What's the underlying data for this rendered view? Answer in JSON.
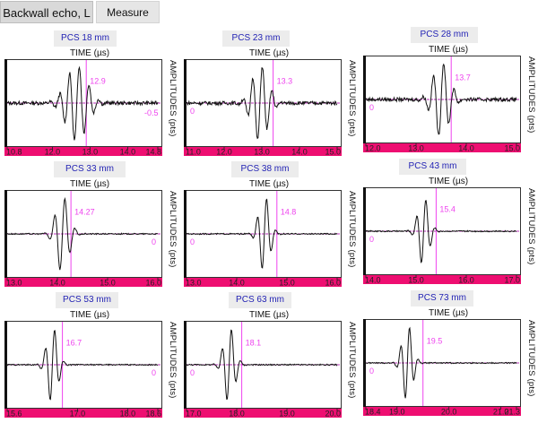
{
  "tabs": [
    {
      "label": "Backwall echo, L"
    },
    {
      "label": "Measure"
    }
  ],
  "axis": {
    "time": "TIME (µs)",
    "amp": "AMPLITUDES (pts)"
  },
  "colors": {
    "strip": "#ee0e71",
    "cursor": "#ee44ee",
    "trace": "#111111",
    "baseline": "#b830b8"
  },
  "panels": [
    {
      "pcs": "PCS 18 mm",
      "cursor": "12.9",
      "zero": "-0.5",
      "ticks": [
        "10.8",
        "12.0",
        "13.0",
        "14.0",
        "14.8"
      ],
      "xmin": 10.8,
      "xmax": 14.8,
      "center": 12.65,
      "amp": 0.95,
      "spread": 0.38,
      "freq": 1.6
    },
    {
      "pcs": "PCS 23 mm",
      "cursor": "13.3",
      "zero": "0",
      "ticks": [
        "11.0",
        "12.0",
        "13.0",
        "14.0",
        "15.0"
      ],
      "xmin": 11.0,
      "xmax": 15.0,
      "center": 12.95,
      "amp": 0.95,
      "spread": 0.3,
      "freq": 1.6
    },
    {
      "pcs": "PCS 28 mm",
      "cursor": "13.7",
      "zero": "0",
      "ticks": [
        "12.0",
        "13.0",
        "14.0",
        "15.0"
      ],
      "xmin": 12.0,
      "xmax": 15.0,
      "center": 13.5,
      "amp": 0.95,
      "spread": 0.22,
      "freq": 2.0
    },
    {
      "pcs": "PCS 33 mm",
      "cursor": "14.27",
      "zero": "0",
      "ticks": [
        "13.0",
        "14.0",
        "15.0",
        "16.0"
      ],
      "xmin": 13.0,
      "xmax": 16.0,
      "center": 14.1,
      "amp": 0.95,
      "spread": 0.18,
      "freq": 2.0
    },
    {
      "pcs": "PCS 38 mm",
      "cursor": "14.8",
      "zero": "0",
      "ticks": [
        "13.0",
        "14.0",
        "15.0",
        "16.0"
      ],
      "xmin": 13.0,
      "xmax": 16.0,
      "center": 14.55,
      "amp": 0.95,
      "spread": 0.15,
      "freq": 2.2
    },
    {
      "pcs": "PCS 43 mm",
      "cursor": "15.4",
      "zero": "0",
      "ticks": [
        "14.0",
        "15.0",
        "16.0",
        "17.0"
      ],
      "xmin": 14.0,
      "xmax": 17.0,
      "center": 15.15,
      "amp": 0.85,
      "spread": 0.15,
      "freq": 2.2
    },
    {
      "pcs": "PCS 53 mm",
      "cursor": "16.7",
      "zero": "0",
      "ticks": [
        "15.6",
        "17.0",
        "18.0",
        "18.6"
      ],
      "xmin": 15.6,
      "xmax": 18.6,
      "center": 16.5,
      "amp": 0.95,
      "spread": 0.15,
      "freq": 2.2
    },
    {
      "pcs": "PCS 63 mm",
      "cursor": "18.1",
      "zero": "0",
      "ticks": [
        "17.0",
        "18.0",
        "19.0",
        "20.0"
      ],
      "xmin": 17.0,
      "xmax": 20.0,
      "center": 17.85,
      "amp": 0.95,
      "spread": 0.15,
      "freq": 2.2
    },
    {
      "pcs": "PCS 73 mm",
      "cursor": "19.5",
      "zero": "0",
      "ticks": [
        "18.4",
        "19.0",
        "20.0",
        "21.0",
        "21.3"
      ],
      "xmin": 18.4,
      "xmax": 21.3,
      "center": 19.2,
      "amp": 0.95,
      "spread": 0.14,
      "freq": 2.4
    }
  ]
}
